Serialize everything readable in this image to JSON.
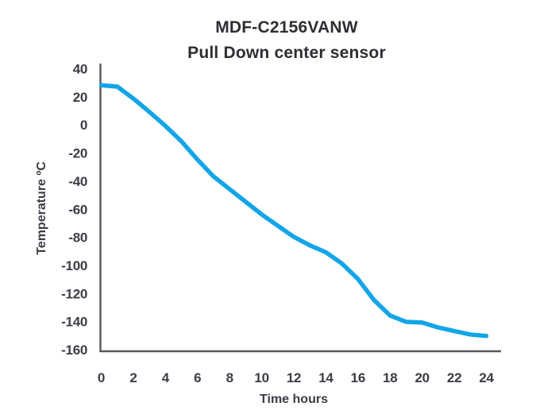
{
  "figure": {
    "title": "MDF-C2156VANW",
    "subtitle": "Pull Down center sensor"
  },
  "colors": {
    "line": "#12a5e8",
    "axis": "#58585b",
    "tick_text": "#3c3c46",
    "title_text": "#2e2e33",
    "background": "#ffffff"
  },
  "chart_data": {
    "type": "line",
    "title": "MDF-C2156VANW",
    "subtitle": "Pull Down center sensor",
    "xlabel": "Time hours",
    "ylabel": "Temperature ºC",
    "xlim": [
      0,
      24
    ],
    "ylim": [
      -160,
      40
    ],
    "xticks": [
      0,
      2,
      4,
      6,
      8,
      10,
      12,
      14,
      16,
      18,
      20,
      22,
      24
    ],
    "yticks": [
      40,
      20,
      0,
      -20,
      -40,
      -60,
      -80,
      -100,
      -120,
      -140,
      -160
    ],
    "grid": false,
    "legend": "none",
    "series": [
      {
        "name": "Pull Down center sensor",
        "color": "#12a5e8",
        "x": [
          0,
          1,
          2,
          3,
          4,
          5,
          6,
          7,
          8,
          9,
          10,
          11,
          12,
          13,
          14,
          15,
          16,
          17,
          18,
          19,
          20,
          21,
          22,
          23,
          24
        ],
        "y": [
          28,
          27,
          18.5,
          9,
          -1,
          -12,
          -25,
          -37,
          -46,
          -55,
          -64,
          -72,
          -80,
          -86,
          -91,
          -99,
          -110,
          -125,
          -136,
          -140.5,
          -141,
          -144.5,
          -147,
          -149.5,
          -150.5
        ]
      }
    ]
  }
}
